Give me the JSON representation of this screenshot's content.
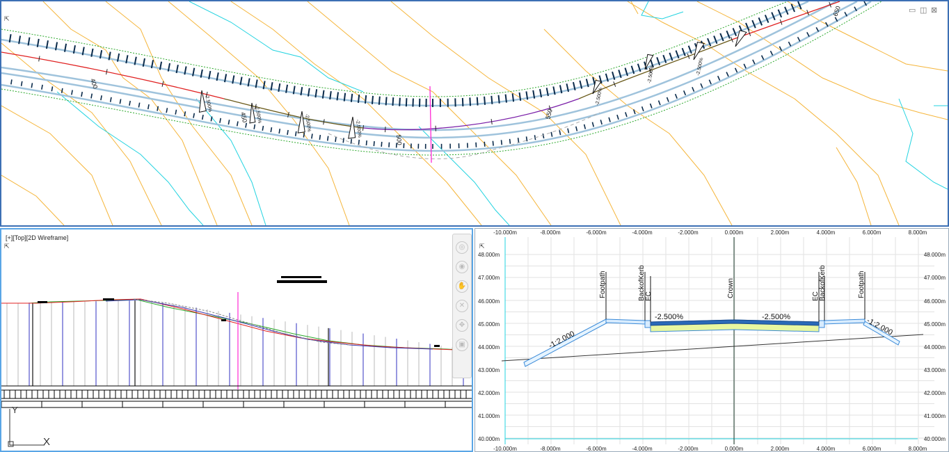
{
  "plan": {
    "chainages": [
      "400",
      "450",
      "500",
      "550",
      "650"
    ],
    "superelevation_labels": [
      "-2.500%",
      "-2.500%",
      "-2.500%",
      "-2.500%",
      "-2.500%",
      "-2.500%",
      "-2.500%"
    ],
    "window_controls": {
      "minimize": "▭",
      "restore": "◫",
      "close": "⊠"
    }
  },
  "profile": {
    "viewport_label": "[+][Top][2D Wireframe]",
    "ucs_x": "X",
    "ucs_y": "Y"
  },
  "section": {
    "x_ticks": [
      "-10.000m",
      "-8.000m",
      "-6.000m",
      "-4.000m",
      "-2.000m",
      "0.000m",
      "2.000m",
      "4.000m",
      "6.000m",
      "8.000m"
    ],
    "y_ticks": [
      "48.000m",
      "47.000m",
      "46.000m",
      "45.000m",
      "44.000m",
      "43.000m",
      "42.000m",
      "41.000m",
      "40.000m"
    ],
    "codes": {
      "footpath_left": "Footpath",
      "backofkerb_left": "BackofKerb",
      "ec_left": "EC",
      "crown": "Crown",
      "ec_right": "EC",
      "backofkerb_right": "BackofKerb",
      "footpath_right": "Footpath"
    },
    "slopes": {
      "left_cross": "-2.500%",
      "right_cross": "-2.500%",
      "left_batter": "-1:2.000",
      "right_batter": "-1:2.000"
    }
  },
  "colors": {
    "contour": "#f5b53a",
    "water": "#22d3e0",
    "alignment": "#e02020",
    "curve": "#7a1fa8",
    "edge": "#9fc3dc",
    "tick": "#0a2a4a",
    "daylight": "#2ba82b",
    "section_marker": "#ff2ad4"
  }
}
